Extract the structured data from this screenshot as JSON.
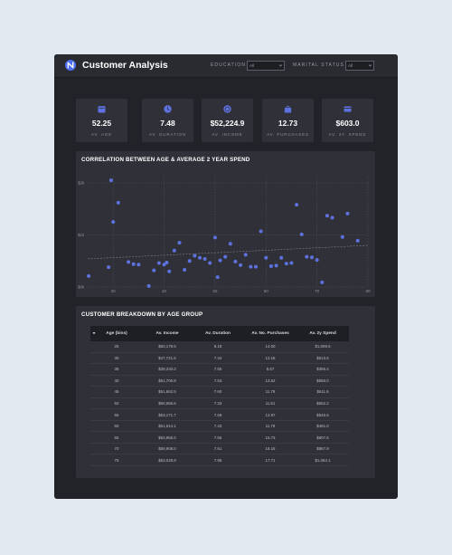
{
  "app": {
    "title": "Customer Analysis"
  },
  "filters": {
    "education": {
      "label": "EDUCATION",
      "value": "All"
    },
    "marital": {
      "label": "MARITAL STATUS",
      "value": "All"
    }
  },
  "kpis": [
    {
      "value": "52.25",
      "label": "AV. AGE",
      "icon": "calendar-icon"
    },
    {
      "value": "7.48",
      "label": "AV. DURATION",
      "icon": "clock-icon"
    },
    {
      "value": "$52,224.9",
      "label": "AV. INCOME",
      "icon": "coin-icon"
    },
    {
      "value": "12.73",
      "label": "AV. PURCHASES",
      "icon": "shopping-bag-icon"
    },
    {
      "value": "$603.0",
      "label": "AV. 2Y. SPEND",
      "icon": "credit-card-icon"
    }
  ],
  "chart_card": {
    "title": "CORRELATION BETWEEN AGE & AVERAGE 2 YEAR SPEND"
  },
  "chart_data": {
    "type": "scatter",
    "title": "CORRELATION BETWEEN AGE & AVERAGE 2 YEAR SPEND",
    "xlabel": "",
    "ylabel": "",
    "xlim": [
      25,
      80
    ],
    "ylim": [
      0,
      2000
    ],
    "xticks": [
      30,
      40,
      50,
      60,
      70,
      80
    ],
    "xtick_labels": [
      "30",
      "40",
      "50",
      "60",
      "70",
      "80"
    ],
    "yticks": [
      0,
      1000,
      2000
    ],
    "ytick_labels": [
      "$0k",
      "$1k",
      "$2k"
    ],
    "grid": true,
    "colors": {
      "points": "#5d72df",
      "trend": "#7e818c",
      "grid": "#50525c"
    },
    "trendline": {
      "x": [
        25,
        80
      ],
      "y": [
        540,
        800
      ]
    },
    "points": {
      "x": [
        25.2,
        29.1,
        29.6,
        30.0,
        31.0,
        33.0,
        34.0,
        35.0,
        37.0,
        38.0,
        39.0,
        40.0,
        40.5,
        41.0,
        42.0,
        43.0,
        44.0,
        45.0,
        46.0,
        47.0,
        48.0,
        49.0,
        50.0,
        50.5,
        51.0,
        52.0,
        53.0,
        54.0,
        55.0,
        56.0,
        57.0,
        58.0,
        59.0,
        60.0,
        61.0,
        62.0,
        63.0,
        64.0,
        65.0,
        66.0,
        67.0,
        68.0,
        69.0,
        70.0,
        71.0,
        72.0,
        73.0,
        75.0,
        76.0,
        78.0
      ],
      "y": [
        210,
        380,
        2050,
        1250,
        1620,
        480,
        440,
        430,
        20,
        320,
        460,
        430,
        470,
        300,
        700,
        850,
        330,
        500,
        600,
        560,
        540,
        460,
        950,
        190,
        510,
        580,
        830,
        490,
        420,
        620,
        390,
        390,
        1070,
        560,
        400,
        410,
        560,
        450,
        460,
        1580,
        1010,
        580,
        570,
        520,
        90,
        1370,
        1330,
        960,
        1410,
        890
      ]
    }
  },
  "table_card": {
    "title": "CUSTOMER BREAKDOWN BY AGE GROUP"
  },
  "table": {
    "columns": [
      "Age (bins)",
      "Av. Income",
      "Av. Duration",
      "Av. No. Purchases",
      "Av. 2y Spend"
    ],
    "rows": [
      [
        "25",
        "$50,179.5",
        "8.18",
        "14.00",
        "$1,099.5"
      ],
      [
        "30",
        "$47,721.6",
        "7.34",
        "12.18",
        "$613.6"
      ],
      [
        "35",
        "$39,233.2",
        "7.56",
        "8.57",
        "$355.4"
      ],
      [
        "40",
        "$51,706.8",
        "7.53",
        "13.52",
        "$560.0"
      ],
      [
        "45",
        "$51,662.5",
        "7.60",
        "11.78",
        "$611.6"
      ],
      [
        "50",
        "$50,656.6",
        "7.33",
        "11.51",
        "$562.2"
      ],
      [
        "55",
        "$53,171.7",
        "7.69",
        "12.97",
        "$545.6"
      ],
      [
        "60",
        "$51,614.1",
        "7.43",
        "11.79",
        "$481.0"
      ],
      [
        "65",
        "$63,856.0",
        "7.65",
        "15.73",
        "$807.5"
      ],
      [
        "70",
        "$59,908.0",
        "7.61",
        "16.15",
        "$867.9"
      ],
      [
        "75",
        "$63,028.9",
        "7.95",
        "17.71",
        "$1,084.1"
      ]
    ]
  }
}
